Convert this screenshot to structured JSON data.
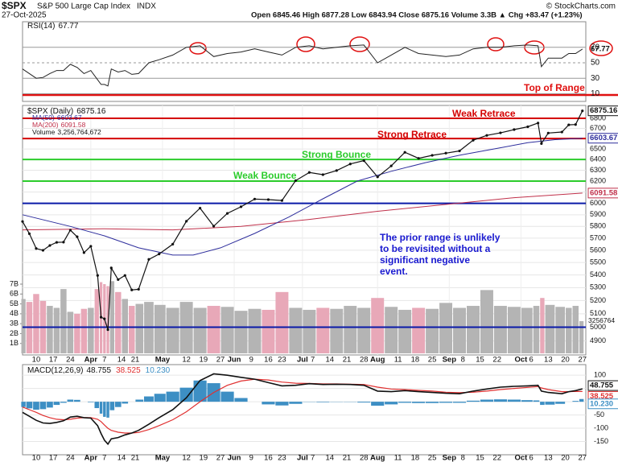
{
  "header": {
    "symbol": "$SPX",
    "name": "S&P 500 Large Cap Index",
    "exchange": "INDX",
    "date": "27-Oct-2025",
    "quote": "Open 6845.46  High 6877.28  Low 6843.94  Close 6875.16  Volume 3.3B  ▲ Chg +83.47 (+1.23%)",
    "credit": "© StockCharts.com"
  },
  "chart_data": [
    {
      "type": "line",
      "title": "RSI(14)",
      "x": [
        -4,
        -2,
        0,
        2,
        4,
        6,
        8,
        10,
        12,
        14,
        16,
        18,
        19,
        20,
        21,
        22,
        24,
        26,
        28,
        30,
        33,
        36,
        40,
        44,
        48,
        52,
        56,
        60,
        64,
        68,
        72,
        76,
        80,
        84,
        88,
        92,
        96,
        100,
        104,
        108,
        112,
        116,
        120,
        124,
        128,
        132,
        136,
        140,
        144,
        147,
        148,
        150,
        154,
        156,
        158,
        160
      ],
      "series": [
        {
          "color": "#222222",
          "values": [
            42,
            36,
            30,
            31,
            36,
            40,
            40,
            48,
            44,
            36,
            40,
            28,
            22,
            22,
            20,
            42,
            38,
            40,
            35,
            36,
            50,
            54,
            60,
            70,
            72,
            58,
            62,
            64,
            68,
            64,
            60,
            70,
            72,
            68,
            70,
            72,
            73,
            50,
            60,
            70,
            62,
            60,
            58,
            60,
            68,
            70,
            70,
            72,
            73,
            72,
            45,
            56,
            56,
            62,
            62,
            67.77
          ]
        }
      ],
      "xlim": [
        -4,
        161
      ],
      "ylim": [
        0,
        100
      ],
      "yticks": [
        70,
        50,
        30,
        10
      ],
      "grid": true
    },
    {
      "type": "line",
      "title": "$SPX (Daily)",
      "log_scale": true,
      "x": [
        -4,
        -2,
        0,
        2,
        4,
        6,
        8,
        10,
        12,
        14,
        16,
        18,
        19,
        20,
        21,
        22,
        24,
        26,
        28,
        30,
        33,
        36,
        40,
        44,
        48,
        52,
        56,
        60,
        64,
        68,
        72,
        76,
        80,
        84,
        88,
        92,
        96,
        100,
        104,
        108,
        112,
        116,
        120,
        124,
        128,
        132,
        136,
        140,
        144,
        147,
        148,
        150,
        154,
        156,
        158,
        160
      ],
      "series": [
        {
          "color": "#111111",
          "values": [
            5842,
            5738,
            5614,
            5599,
            5639,
            5665,
            5667,
            5768,
            5712,
            5580,
            5633,
            5396,
            5074,
            5062,
            4982,
            5456,
            5363,
            5396,
            5282,
            5287,
            5525,
            5569,
            5650,
            5844,
            5958,
            5802,
            5912,
            5970,
            6038,
            6033,
            6025,
            6204,
            6279,
            6259,
            6297,
            6358,
            6389,
            6238,
            6340,
            6468,
            6411,
            6439,
            6460,
            6481,
            6584,
            6631,
            6656,
            6688,
            6716,
            6753,
            6552,
            6654,
            6664,
            6735,
            6738,
            6875.16
          ]
        },
        {
          "name": "MA(50)",
          "color": "#2d2d9c",
          "x": [
            -4,
            10,
            20,
            30,
            40,
            46,
            54,
            64,
            74,
            84,
            94,
            104,
            114,
            124,
            134,
            144,
            152,
            160
          ],
          "values": [
            5900,
            5800,
            5720,
            5620,
            5560,
            5560,
            5620,
            5740,
            5880,
            6040,
            6200,
            6290,
            6370,
            6440,
            6500,
            6560,
            6590,
            6603.67
          ]
        },
        {
          "name": "MA(200)",
          "color": "#c0304a",
          "x": [
            -4,
            20,
            40,
            60,
            80,
            100,
            120,
            140,
            160
          ],
          "values": [
            5770,
            5780,
            5770,
            5800,
            5860,
            5930,
            5990,
            6050,
            6091.58
          ]
        },
        {
          "name": "Volume",
          "legend_value": "3,256,764,672",
          "right_label": "3256764",
          "axis": "y2",
          "color": "#b4b4b4",
          "down_color": "#e8a8b8",
          "values": [
            5.5,
            5.2,
            6.0,
            5.3,
            4.8,
            4.6,
            6.5,
            4.2,
            4.0,
            4.5,
            4.6,
            6.5,
            7.2,
            7.0,
            6.8,
            7.3,
            6.2,
            5.5,
            4.8,
            5.0,
            5.2,
            4.9,
            4.6,
            5.2,
            4.6,
            4.8,
            4.7,
            4.3,
            4.5,
            4.4,
            6.2,
            4.6,
            4.4,
            4.6,
            4.5,
            4.8,
            4.6,
            5.6,
            4.7,
            4.4,
            4.6,
            4.5,
            5.1,
            4.6,
            4.8,
            6.4,
            4.8,
            4.7,
            4.6,
            4.8,
            5.6,
            4.9,
            4.7,
            4.6,
            4.8,
            3.256764672
          ]
        }
      ],
      "xlim": [
        -4,
        161
      ],
      "ylim": [
        4800,
        6930
      ],
      "yticks": [
        4900,
        5000,
        5100,
        5200,
        5300,
        5400,
        5500,
        5600,
        5700,
        5800,
        5900,
        6000,
        6100,
        6200,
        6300,
        6400,
        6500,
        6600,
        6700,
        6800
      ],
      "y2lim": [
        0,
        7
      ],
      "y2ticks": [
        {
          "value": 1,
          "label": "1B"
        },
        {
          "value": 2,
          "label": "2B"
        },
        {
          "value": 3,
          "label": "3B"
        },
        {
          "value": 4,
          "label": "4B"
        },
        {
          "value": 5,
          "label": "5B"
        },
        {
          "value": 6,
          "label": "6B"
        },
        {
          "value": 7,
          "label": "7B"
        }
      ],
      "xticks": [
        {
          "value": 0,
          "label": "10"
        },
        {
          "value": 5,
          "label": "17"
        },
        {
          "value": 10,
          "label": "24"
        },
        {
          "value": 16,
          "label": "Apr"
        },
        {
          "value": 20,
          "label": "7"
        },
        {
          "value": 25,
          "label": "14"
        },
        {
          "value": 29,
          "label": "21"
        },
        {
          "value": 37,
          "label": "May"
        },
        {
          "value": 44,
          "label": "12"
        },
        {
          "value": 49,
          "label": "19"
        },
        {
          "value": 54,
          "label": "27"
        },
        {
          "value": 58,
          "label": "Jun"
        },
        {
          "value": 63,
          "label": "9"
        },
        {
          "value": 68,
          "label": "16"
        },
        {
          "value": 72,
          "label": "23"
        },
        {
          "value": 78,
          "label": "Jul"
        },
        {
          "value": 81,
          "label": "7"
        },
        {
          "value": 86,
          "label": "14"
        },
        {
          "value": 91,
          "label": "21"
        },
        {
          "value": 96,
          "label": "28"
        },
        {
          "value": 100,
          "label": "Aug"
        },
        {
          "value": 106,
          "label": "11"
        },
        {
          "value": 111,
          "label": "18"
        },
        {
          "value": 116,
          "label": "25"
        },
        {
          "value": 121,
          "label": "Sep"
        },
        {
          "value": 125,
          "label": "8"
        },
        {
          "value": 130,
          "label": "15"
        },
        {
          "value": 135,
          "label": "22"
        },
        {
          "value": 142,
          "label": "Oct"
        },
        {
          "value": 145,
          "label": "6"
        },
        {
          "value": 150,
          "label": "13"
        },
        {
          "value": 155,
          "label": "20"
        },
        {
          "value": 160,
          "label": "27"
        }
      ],
      "hlines": [
        {
          "value": 6800,
          "color": "#d40000",
          "label": "Weak Retrace"
        },
        {
          "value": 6600,
          "color": "#d40000",
          "label": "Strong Retrace"
        },
        {
          "value": 6400,
          "color": "#2ccc2c",
          "label": "Strong Bounce"
        },
        {
          "value": 6200,
          "color": "#2ccc2c",
          "label": "Weak Bounce"
        },
        {
          "value": 6000,
          "color": "#0a1aa8"
        },
        {
          "value": 5000,
          "color": "#0a1aa8"
        }
      ],
      "top_of_range": "Top of Range",
      "note": [
        "The prior range is unlikely",
        "to be revisited without a",
        "significant negative",
        "event."
      ],
      "grid": true
    },
    {
      "type": "macd",
      "title": "MACD(12,26,9)",
      "x": [
        -4,
        -2,
        0,
        2,
        4,
        6,
        8,
        10,
        12,
        14,
        16,
        18,
        19,
        20,
        21,
        22,
        24,
        26,
        28,
        30,
        33,
        36,
        40,
        44,
        48,
        52,
        56,
        60,
        64,
        68,
        72,
        76,
        80,
        84,
        88,
        92,
        96,
        100,
        104,
        108,
        112,
        116,
        120,
        124,
        128,
        132,
        136,
        140,
        144,
        147,
        148,
        150,
        154,
        156,
        158,
        160
      ],
      "series": [
        {
          "color": "#111111",
          "values": [
            -40,
            -55,
            -70,
            -80,
            -82,
            -78,
            -72,
            -58,
            -55,
            -60,
            -62,
            -90,
            -120,
            -145,
            -160,
            -140,
            -135,
            -125,
            -118,
            -108,
            -85,
            -60,
            -30,
            15,
            80,
            105,
            100,
            92,
            85,
            72,
            60,
            62,
            68,
            65,
            66,
            65,
            62,
            40,
            38,
            42,
            38,
            35,
            32,
            30,
            40,
            48,
            55,
            58,
            60,
            62,
            40,
            35,
            30,
            38,
            42,
            48.755
          ]
        },
        {
          "color": "#e03030",
          "values": [
            -20,
            -30,
            -40,
            -52,
            -60,
            -66,
            -68,
            -66,
            -62,
            -60,
            -60,
            -66,
            -75,
            -88,
            -100,
            -108,
            -115,
            -118,
            -118,
            -116,
            -105,
            -90,
            -68,
            -38,
            0,
            35,
            62,
            78,
            85,
            82,
            74,
            70,
            69,
            67,
            67,
            66,
            65,
            55,
            48,
            46,
            43,
            40,
            36,
            34,
            36,
            40,
            46,
            50,
            54,
            57,
            52,
            46,
            38,
            38,
            39,
            38.525
          ]
        },
        {
          "color": "#3d8fc4",
          "last_label": "10.230",
          "values": [
            -20,
            -25,
            -30,
            -28,
            -22,
            -12,
            -4,
            8,
            7,
            0,
            -2,
            -24,
            -45,
            -57,
            -60,
            -32,
            -20,
            -7,
            0,
            8,
            20,
            30,
            38,
            53,
            80,
            70,
            38,
            14,
            0,
            -10,
            -14,
            -8,
            -1,
            -2,
            -1,
            -1,
            -3,
            -15,
            -10,
            -4,
            -5,
            -5,
            -4,
            -4,
            4,
            8,
            9,
            8,
            6,
            5,
            -12,
            -11,
            -8,
            0,
            3,
            10.23
          ]
        }
      ],
      "xlim": [
        -4,
        161
      ],
      "ylim": [
        -200,
        140
      ],
      "yticks": [
        100,
        50,
        0,
        -50,
        -100,
        -150
      ],
      "grid": true
    }
  ]
}
